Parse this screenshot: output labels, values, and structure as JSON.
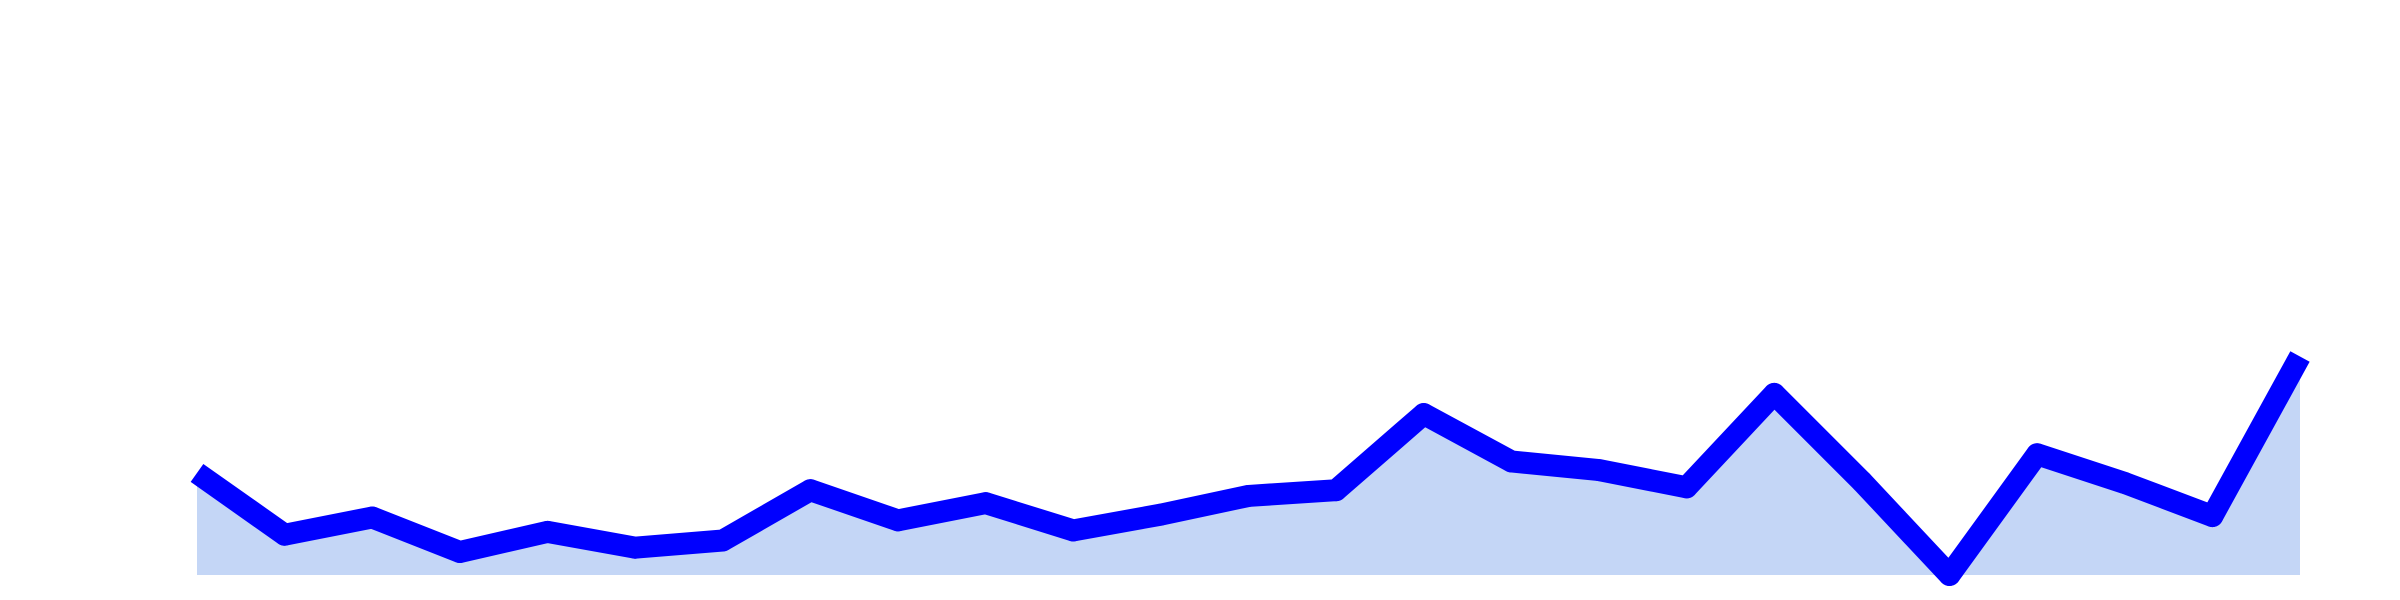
{
  "chart_data": {
    "type": "area",
    "title": "",
    "xlabel": "",
    "ylabel": "",
    "x": [
      0,
      1,
      2,
      3,
      4,
      5,
      6,
      7,
      8,
      9,
      10,
      11,
      12,
      13,
      14,
      15,
      16,
      17,
      18,
      19,
      20,
      21,
      22,
      23,
      24
    ],
    "series": [
      {
        "values": [
          35.5,
          14.0,
          20.0,
          8.0,
          15.0,
          9.5,
          12.0,
          29.5,
          19.0,
          25.0,
          15.5,
          21.0,
          27.5,
          29.5,
          56.0,
          39.5,
          36.5,
          30.5,
          63.0,
          32.5,
          0.0,
          42.0,
          32.0,
          20.5,
          76.0
        ]
      }
    ],
    "ylim": [
      0,
      200
    ],
    "grid": false,
    "colors": {
      "line": "#0000ff",
      "fill": "#c4d6f6"
    }
  }
}
